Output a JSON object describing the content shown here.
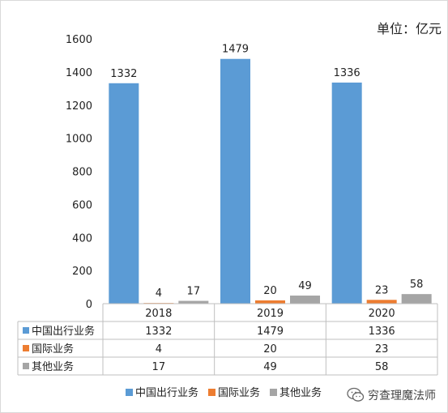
{
  "unit_label": "单位：亿元",
  "watermark": {
    "text": "穷查理魔法师",
    "icon": "wechat-icon"
  },
  "chart_data": {
    "type": "bar",
    "categories": [
      "2018",
      "2019",
      "2020"
    ],
    "series": [
      {
        "name": "中国出行业务",
        "values": [
          1332,
          1479,
          1336
        ],
        "color": "#5b9bd5"
      },
      {
        "name": "国际业务",
        "values": [
          4,
          20,
          23
        ],
        "color": "#ed7d31"
      },
      {
        "name": "其他业务",
        "values": [
          17,
          49,
          58
        ],
        "color": "#a5a5a5"
      }
    ],
    "ylim": [
      0,
      1600
    ],
    "yticks": [
      0,
      200,
      400,
      600,
      800,
      1000,
      1200,
      1400,
      1600
    ],
    "grid": false,
    "data_table": true,
    "legend_position": "bottom"
  }
}
